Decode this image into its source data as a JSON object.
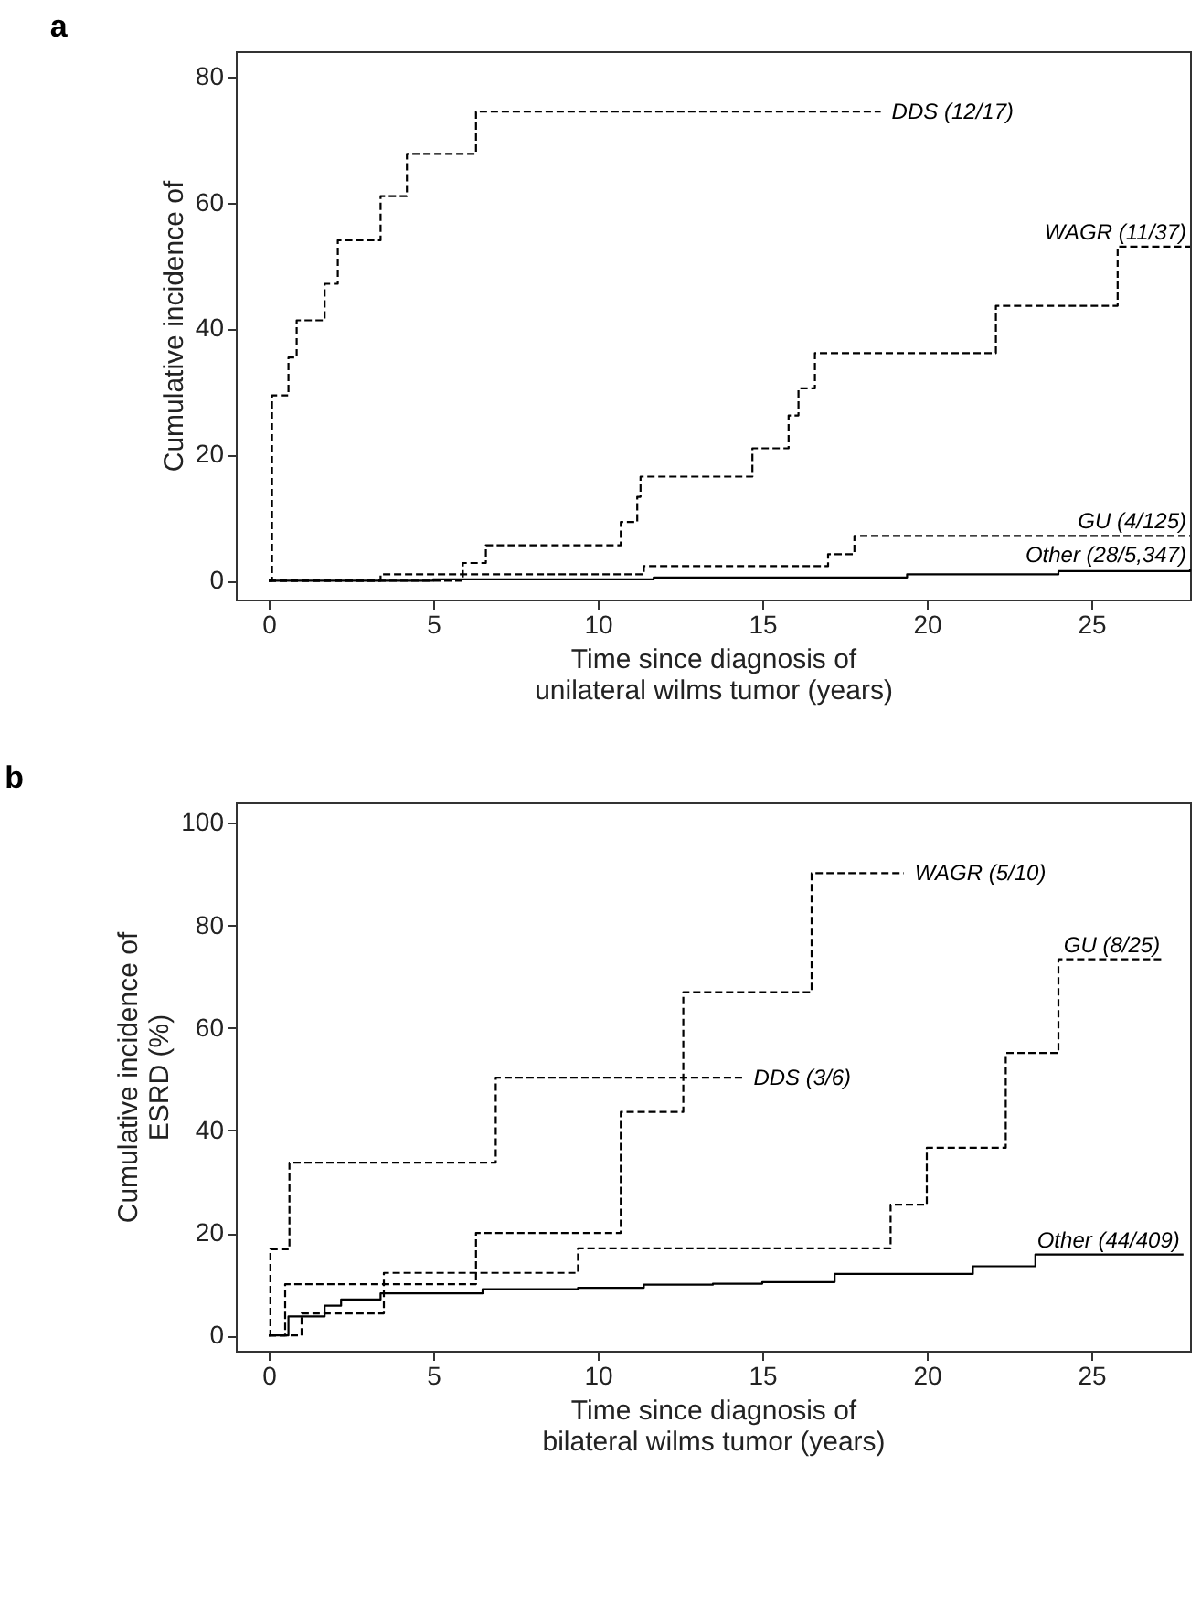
{
  "chart_data": [
    {
      "type": "step",
      "title": "a",
      "xlabel": "Time since diagnosis of\nunilateral wilms tumor (years)",
      "ylabel": "Cumulative incidence of",
      "xlim": [
        -1,
        28
      ],
      "xticks": [
        0,
        5,
        10,
        15,
        20,
        25
      ],
      "ylim": [
        -3,
        84
      ],
      "yticks": [
        0,
        20,
        40,
        60,
        80
      ],
      "grid": false,
      "series": [
        {
          "name": "DDS (12/17)",
          "color": "#000000",
          "line_style": "dashed",
          "x": [
            0,
            0.1,
            0.6,
            0.85,
            1.7,
            2.1,
            3.4,
            4.2,
            6.3,
            18.6
          ],
          "values": [
            0,
            29.4,
            35.4,
            41.3,
            47.1,
            54,
            61,
            67.7,
            74.4,
            74.4
          ]
        },
        {
          "name": "WAGR (11/37)",
          "color": "#000000",
          "line_style": "dashed",
          "x": [
            0,
            5.9,
            6.6,
            10.7,
            11.2,
            11.3,
            14.7,
            15.8,
            16.1,
            16.6,
            22.1,
            25.8,
            28
          ],
          "values": [
            0,
            2.8,
            5.6,
            9.3,
            13.3,
            16.5,
            21,
            26.2,
            30.5,
            36.1,
            43.6,
            53,
            53
          ]
        },
        {
          "name": "GU (4/125)",
          "color": "#000000",
          "line_style": "dashed",
          "x": [
            0,
            3.4,
            11.4,
            17,
            17.8,
            28
          ],
          "values": [
            0,
            1,
            2.3,
            4.2,
            7.1,
            7.1
          ]
        },
        {
          "name": "Other (28/5,347)",
          "color": "#000000",
          "line_style": "solid",
          "x": [
            0,
            5,
            11.7,
            19.4,
            24,
            28
          ],
          "values": [
            0,
            0.2,
            0.5,
            1,
            1.5,
            1.8
          ]
        }
      ]
    },
    {
      "type": "step",
      "title": "b",
      "xlabel": "Time since diagnosis of\nbilateral wilms tumor (years)",
      "ylabel": "Cumulative incidence of\nESRD (%)",
      "xlim": [
        -1,
        28
      ],
      "xticks": [
        0,
        5,
        10,
        15,
        20,
        25
      ],
      "ylim": [
        -3,
        104
      ],
      "yticks": [
        0,
        20,
        40,
        60,
        80,
        100
      ],
      "grid": false,
      "series": [
        {
          "name": "WAGR (5/10)",
          "color": "#000000",
          "line_style": "dashed",
          "x": [
            0,
            0.5,
            6.3,
            10.7,
            12.6,
            16.5,
            19.3
          ],
          "values": [
            0,
            10,
            20,
            43.6,
            67,
            90.2,
            90.2
          ]
        },
        {
          "name": "GU (8/25)",
          "color": "#000000",
          "line_style": "dashed",
          "x": [
            0,
            1,
            3.5,
            9.4,
            18.9,
            20,
            22.4,
            24,
            27.2
          ],
          "values": [
            0,
            4.3,
            12.2,
            17,
            25.5,
            36.6,
            55.1,
            73.4,
            73.4
          ]
        },
        {
          "name": "DDS (3/6)",
          "color": "#000000",
          "line_style": "dashed",
          "x": [
            0,
            0.05,
            0.63,
            6.9,
            14.4
          ],
          "values": [
            0,
            16.8,
            33.7,
            50.3,
            50.3
          ]
        },
        {
          "name": "Other (44/409)",
          "color": "#000000",
          "line_style": "solid",
          "x": [
            0,
            0.6,
            1.7,
            2.2,
            3.4,
            6.5,
            9.4,
            11.4,
            13.5,
            15,
            17.2,
            21.4,
            23.3,
            27.8
          ],
          "values": [
            0,
            3.7,
            5.8,
            7,
            8.2,
            9,
            9.3,
            9.9,
            10.1,
            10.4,
            12,
            13.5,
            15.8,
            15.8
          ]
        }
      ]
    }
  ]
}
